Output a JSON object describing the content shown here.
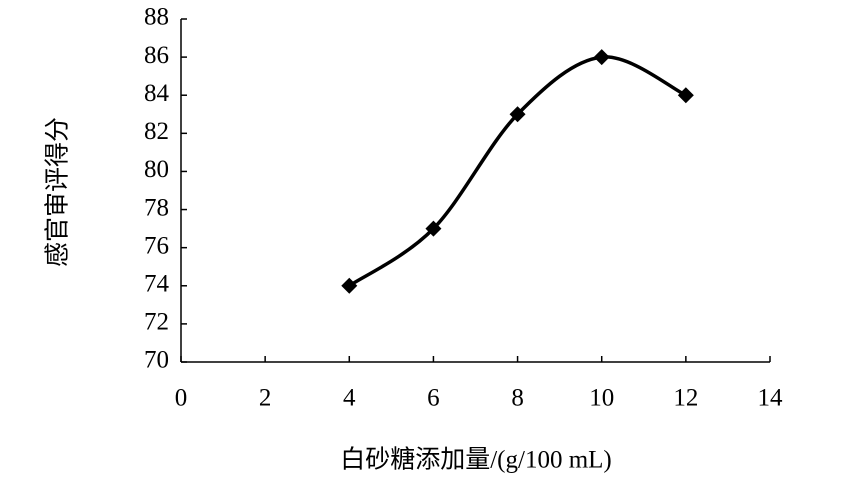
{
  "chart_data": {
    "type": "line",
    "smooth": true,
    "marker": "diamond",
    "x_label": "白砂糖添加量/(g/100 mL)",
    "y_label": "感官审评得分",
    "series": [
      {
        "color": "#000000",
        "x": [
          4,
          6,
          8,
          10,
          12
        ],
        "values": [
          74,
          77,
          83,
          86,
          84
        ]
      }
    ],
    "xlim": [
      0,
      14
    ],
    "xticks": [
      0,
      2,
      4,
      6,
      8,
      10,
      12,
      14
    ],
    "ylim": [
      70,
      88
    ],
    "yticks": [
      70,
      72,
      74,
      76,
      78,
      80,
      82,
      84,
      86,
      88
    ],
    "grid": false
  }
}
